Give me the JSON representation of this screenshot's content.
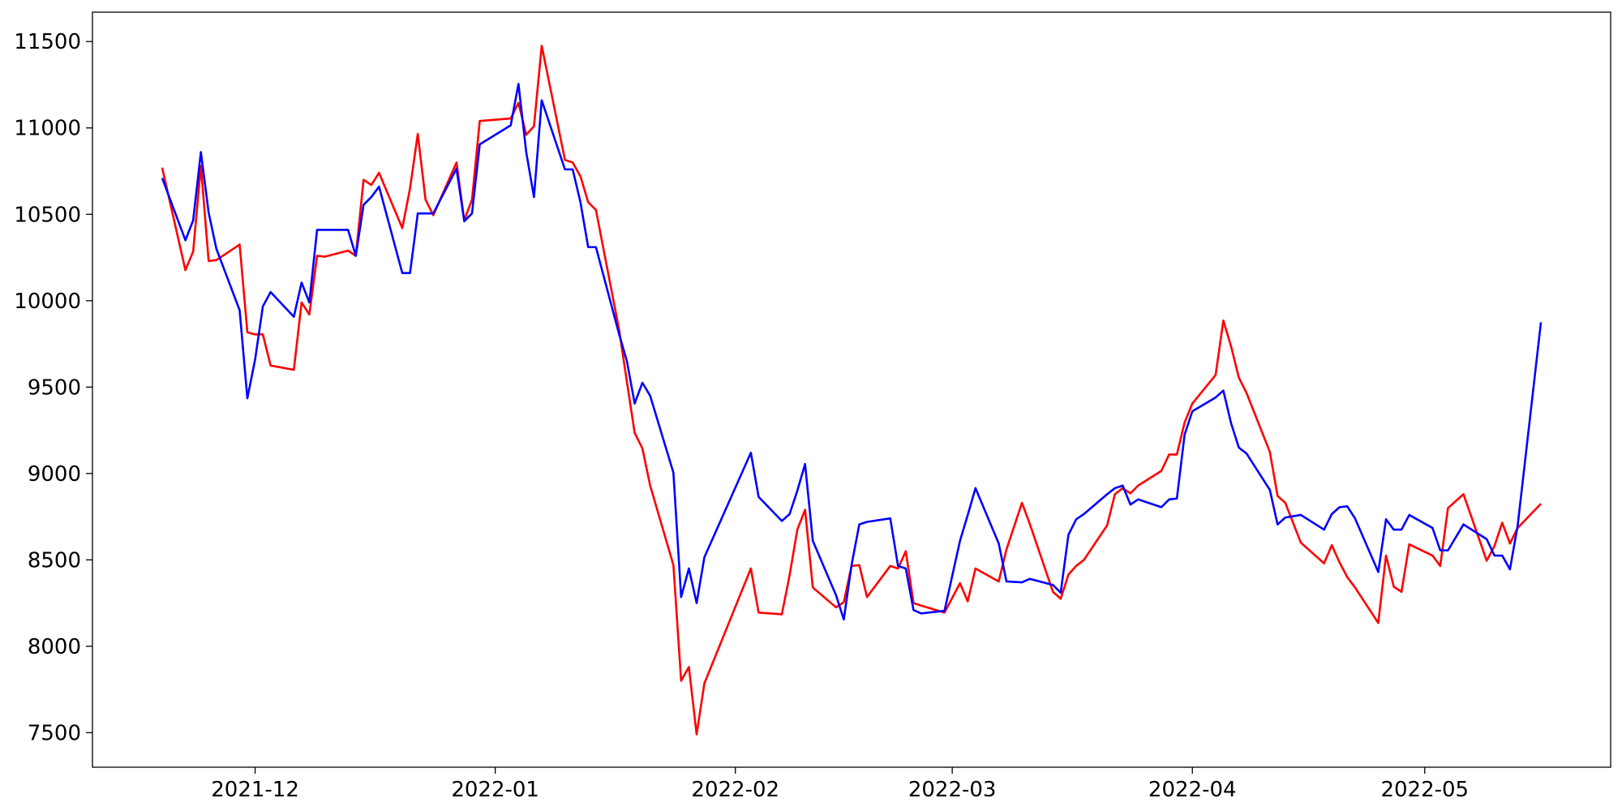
{
  "chart_data": {
    "type": "line",
    "x": [
      "2021-11-19",
      "2021-11-22",
      "2021-11-23",
      "2021-11-24",
      "2021-11-25",
      "2021-11-26",
      "2021-11-29",
      "2021-11-30",
      "2021-12-01",
      "2021-12-02",
      "2021-12-03",
      "2021-12-06",
      "2021-12-07",
      "2021-12-08",
      "2021-12-09",
      "2021-12-10",
      "2021-12-13",
      "2021-12-14",
      "2021-12-15",
      "2021-12-16",
      "2021-12-17",
      "2021-12-20",
      "2021-12-21",
      "2021-12-22",
      "2021-12-23",
      "2021-12-24",
      "2021-12-27",
      "2021-12-28",
      "2021-12-29",
      "2021-12-30",
      "2022-01-03",
      "2022-01-04",
      "2022-01-05",
      "2022-01-06",
      "2022-01-07",
      "2022-01-10",
      "2022-01-11",
      "2022-01-12",
      "2022-01-13",
      "2022-01-14",
      "2022-01-17",
      "2022-01-18",
      "2022-01-19",
      "2022-01-20",
      "2022-01-21",
      "2022-01-24",
      "2022-01-25",
      "2022-01-26",
      "2022-01-27",
      "2022-01-28",
      "2022-02-03",
      "2022-02-04",
      "2022-02-07",
      "2022-02-08",
      "2022-02-09",
      "2022-02-10",
      "2022-02-11",
      "2022-02-14",
      "2022-02-15",
      "2022-02-16",
      "2022-02-17",
      "2022-02-18",
      "2022-02-21",
      "2022-02-22",
      "2022-02-23",
      "2022-02-24",
      "2022-02-25",
      "2022-02-28",
      "2022-03-02",
      "2022-03-03",
      "2022-03-04",
      "2022-03-07",
      "2022-03-08",
      "2022-03-10",
      "2022-03-11",
      "2022-03-14",
      "2022-03-15",
      "2022-03-16",
      "2022-03-17",
      "2022-03-18",
      "2022-03-21",
      "2022-03-22",
      "2022-03-23",
      "2022-03-24",
      "2022-03-25",
      "2022-03-28",
      "2022-03-29",
      "2022-03-30",
      "2022-03-31",
      "2022-04-01",
      "2022-04-04",
      "2022-04-05",
      "2022-04-06",
      "2022-04-07",
      "2022-04-08",
      "2022-04-11",
      "2022-04-12",
      "2022-04-13",
      "2022-04-15",
      "2022-04-18",
      "2022-04-19",
      "2022-04-20",
      "2022-04-21",
      "2022-04-22",
      "2022-04-25",
      "2022-04-26",
      "2022-04-27",
      "2022-04-28",
      "2022-04-29",
      "2022-05-02",
      "2022-05-03",
      "2022-05-04",
      "2022-05-06",
      "2022-05-09",
      "2022-05-10",
      "2022-05-11",
      "2022-05-12",
      "2022-05-13",
      "2022-05-16"
    ],
    "series": [
      {
        "color": "#ff0000",
        "values": [
          10770,
          10177,
          10285,
          10780,
          10230,
          10235,
          10325,
          9817,
          9805,
          9805,
          9625,
          9600,
          9990,
          9920,
          10260,
          10255,
          10290,
          10260,
          10700,
          10670,
          10740,
          10420,
          10650,
          10965,
          10585,
          10495,
          10800,
          10465,
          10585,
          11040,
          11055,
          11145,
          10960,
          11010,
          11475,
          10815,
          10800,
          10720,
          10570,
          10525,
          9830,
          9530,
          9235,
          9145,
          8930,
          8470,
          7800,
          7880,
          7490,
          7785,
          8450,
          8195,
          8185,
          8410,
          8675,
          8790,
          8340,
          8225,
          8255,
          8465,
          8470,
          8285,
          8465,
          8450,
          8550,
          8250,
          8235,
          8195,
          8365,
          8260,
          8450,
          8375,
          8560,
          8830,
          8710,
          8315,
          8275,
          8415,
          8465,
          8500,
          8700,
          8880,
          8915,
          8885,
          8930,
          9015,
          9110,
          9110,
          9295,
          9405,
          9570,
          9885,
          9735,
          9555,
          9465,
          9125,
          8870,
          8830,
          8600,
          8480,
          8585,
          8485,
          8400,
          8340,
          8135,
          8525,
          8345,
          8315,
          8590,
          8525,
          8465,
          8800,
          8880,
          8495,
          8580,
          8715,
          8595,
          8685,
          8825
        ]
      },
      {
        "color": "#0000ff",
        "values": [
          10710,
          10350,
          10465,
          10860,
          10510,
          10300,
          9945,
          9435,
          9660,
          9967,
          10050,
          9907,
          10105,
          9990,
          10410,
          10410,
          10410,
          10260,
          10555,
          10600,
          10660,
          10160,
          10160,
          10505,
          10505,
          10505,
          10765,
          10460,
          10505,
          10905,
          11015,
          11255,
          10860,
          10600,
          11160,
          10760,
          10760,
          10570,
          10310,
          10310,
          9805,
          9650,
          9405,
          9525,
          9450,
          9005,
          8285,
          8450,
          8250,
          8515,
          9120,
          8865,
          8725,
          8765,
          8900,
          9055,
          8610,
          8295,
          8155,
          8470,
          8705,
          8720,
          8740,
          8465,
          8450,
          8210,
          8190,
          8205,
          8610,
          8760,
          8915,
          8595,
          8375,
          8370,
          8390,
          8355,
          8310,
          8645,
          8735,
          8765,
          8880,
          8915,
          8930,
          8820,
          8850,
          8805,
          8850,
          8855,
          9225,
          9360,
          9440,
          9480,
          9290,
          9150,
          9115,
          8905,
          8705,
          8745,
          8760,
          8675,
          8765,
          8805,
          8810,
          8740,
          8430,
          8735,
          8675,
          8675,
          8760,
          8685,
          8555,
          8555,
          8705,
          8620,
          8525,
          8525,
          8445,
          8700,
          9875
        ]
      }
    ],
    "xlim": [
      "2021-11-10",
      "2022-05-25"
    ],
    "xticks": [
      {
        "value": "2021-12-01",
        "label": "2021-12"
      },
      {
        "value": "2022-01-01",
        "label": "2022-01"
      },
      {
        "value": "2022-02-01",
        "label": "2022-02"
      },
      {
        "value": "2022-03-01",
        "label": "2022-03"
      },
      {
        "value": "2022-04-01",
        "label": "2022-04"
      },
      {
        "value": "2022-05-01",
        "label": "2022-05"
      }
    ],
    "ylim": [
      7300,
      11670
    ],
    "yticks": [
      7500,
      8000,
      8500,
      9000,
      9500,
      10000,
      10500,
      11000,
      11500
    ],
    "grid": false
  }
}
